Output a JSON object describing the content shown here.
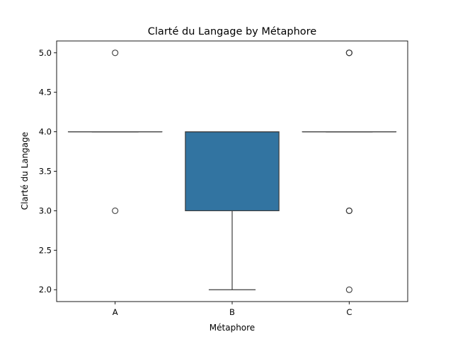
{
  "chart_data": {
    "type": "box",
    "title": "Clarté du Langage by Métaphore",
    "xlabel": "Métaphore",
    "ylabel": "Clarté du Langage",
    "categories": [
      "A",
      "B",
      "C"
    ],
    "ylim": [
      1.85,
      5.15
    ],
    "yticks": [
      "2.0",
      "2.5",
      "3.0",
      "3.5",
      "4.0",
      "4.5",
      "5.0"
    ],
    "grid": false,
    "legend": "none",
    "boxes": [
      {
        "category": "A",
        "q1": 4.0,
        "median": 4.0,
        "q3": 4.0,
        "whisker_low": 4.0,
        "whisker_high": 4.0,
        "outliers": [
          5.0,
          3.0
        ]
      },
      {
        "category": "B",
        "q1": 3.0,
        "median": 4.0,
        "q3": 4.0,
        "whisker_low": 2.0,
        "whisker_high": 4.0,
        "outliers": []
      },
      {
        "category": "C",
        "q1": 4.0,
        "median": 4.0,
        "q3": 4.0,
        "whisker_low": 4.0,
        "whisker_high": 4.0,
        "outliers": [
          5.0,
          5.0,
          5.0,
          3.0,
          3.0,
          3.0,
          2.0
        ]
      }
    ],
    "colors": {
      "box_fill": "#3274a1",
      "line": "#3d3d3d",
      "axis": "#000000"
    }
  }
}
